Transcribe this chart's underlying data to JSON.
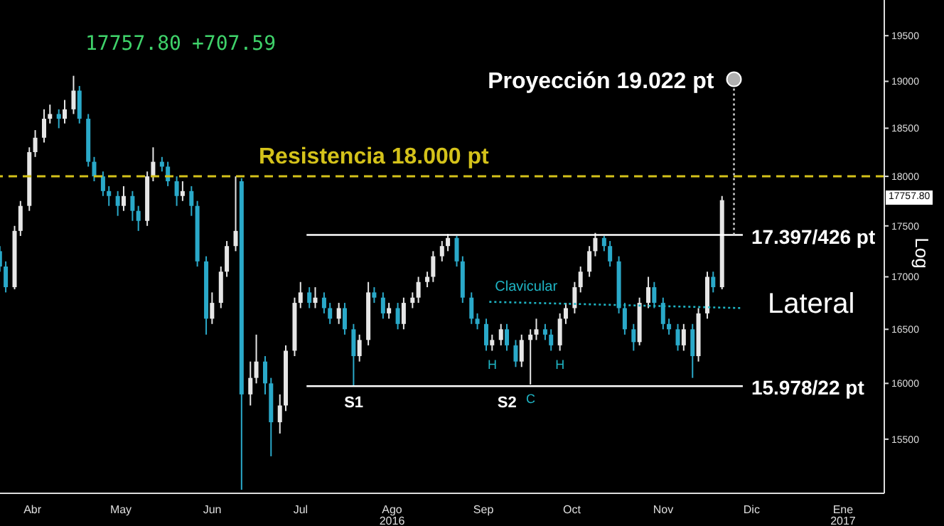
{
  "chart_data": {
    "type": "candlestick",
    "ylabel": "Log",
    "log": true,
    "legend": false,
    "xlim": [
      "2016-04-05",
      "2017-01-30"
    ],
    "xticks": [
      {
        "value": "2016-04-16",
        "label": "Abr"
      },
      {
        "value": "2016-05-16",
        "label": "May"
      },
      {
        "value": "2016-06-16",
        "label": "Jun"
      },
      {
        "value": "2016-07-16",
        "label": "Jul"
      },
      {
        "value": "2016-08-16",
        "label": "Ago\n2016"
      },
      {
        "value": "2016-09-16",
        "label": "Sep"
      },
      {
        "value": "2016-10-16",
        "label": "Oct"
      },
      {
        "value": "2016-11-16",
        "label": "Nov"
      },
      {
        "value": "2016-12-16",
        "label": "Dic"
      },
      {
        "value": "2017-01-16",
        "label": "Ene\n2017"
      }
    ],
    "ylim": [
      15030,
      19900
    ],
    "yticks": [
      15500,
      16000,
      16500,
      17000,
      17500,
      18000,
      18500,
      19000,
      19500
    ],
    "x": [
      "2016-04-05",
      "2016-04-07",
      "2016-04-10",
      "2016-04-12",
      "2016-04-15",
      "2016-04-17",
      "2016-04-20",
      "2016-04-22",
      "2016-04-25",
      "2016-04-27",
      "2016-04-30",
      "2016-05-02",
      "2016-05-05",
      "2016-05-07",
      "2016-05-10",
      "2016-05-12",
      "2016-05-15",
      "2016-05-17",
      "2016-05-20",
      "2016-05-22",
      "2016-05-25",
      "2016-05-27",
      "2016-05-30",
      "2016-06-01",
      "2016-06-04",
      "2016-06-06",
      "2016-06-09",
      "2016-06-11",
      "2016-06-14",
      "2016-06-16",
      "2016-06-19",
      "2016-06-21",
      "2016-06-24",
      "2016-06-26",
      "2016-06-29",
      "2016-07-01",
      "2016-07-04",
      "2016-07-06",
      "2016-07-09",
      "2016-07-11",
      "2016-07-14",
      "2016-07-16",
      "2016-07-19",
      "2016-07-21",
      "2016-07-24",
      "2016-07-26",
      "2016-07-29",
      "2016-07-31",
      "2016-08-03",
      "2016-08-05",
      "2016-08-08",
      "2016-08-10",
      "2016-08-13",
      "2016-08-15",
      "2016-08-18",
      "2016-08-20",
      "2016-08-23",
      "2016-08-25",
      "2016-08-28",
      "2016-08-30",
      "2016-09-02",
      "2016-09-04",
      "2016-09-07",
      "2016-09-09",
      "2016-09-12",
      "2016-09-14",
      "2016-09-17",
      "2016-09-19",
      "2016-09-22",
      "2016-09-24",
      "2016-09-27",
      "2016-09-29",
      "2016-10-02",
      "2016-10-04",
      "2016-10-07",
      "2016-10-09",
      "2016-10-12",
      "2016-10-14",
      "2016-10-17",
      "2016-10-19",
      "2016-10-22",
      "2016-10-24",
      "2016-10-27",
      "2016-10-29",
      "2016-11-01",
      "2016-11-03",
      "2016-11-06",
      "2016-11-08",
      "2016-11-11",
      "2016-11-13",
      "2016-11-16",
      "2016-11-18",
      "2016-11-21",
      "2016-11-23",
      "2016-11-26",
      "2016-11-28",
      "2016-12-01",
      "2016-12-03",
      "2016-12-06"
    ],
    "ohlc": [
      [
        17250,
        17300,
        17050,
        17100
      ],
      [
        17100,
        17150,
        16850,
        16900
      ],
      [
        16900,
        17500,
        16880,
        17450
      ],
      [
        17450,
        17750,
        17400,
        17700
      ],
      [
        17700,
        18300,
        17650,
        18250
      ],
      [
        18250,
        18480,
        18200,
        18400
      ],
      [
        18400,
        18700,
        18350,
        18600
      ],
      [
        18600,
        18750,
        18550,
        18650
      ],
      [
        18650,
        18700,
        18500,
        18600
      ],
      [
        18600,
        18800,
        18550,
        18700
      ],
      [
        18700,
        19060,
        18650,
        18900
      ],
      [
        18900,
        18950,
        18550,
        18600
      ],
      [
        18600,
        18650,
        18100,
        18150
      ],
      [
        18150,
        18200,
        17950,
        18000
      ],
      [
        18000,
        18050,
        17800,
        17850
      ],
      [
        17850,
        17900,
        17700,
        17800
      ],
      [
        17800,
        17850,
        17600,
        17700
      ],
      [
        17700,
        17900,
        17650,
        17800
      ],
      [
        17800,
        17850,
        17550,
        17650
      ],
      [
        17650,
        17700,
        17450,
        17550
      ],
      [
        17550,
        18050,
        17500,
        18000
      ],
      [
        18000,
        18300,
        17950,
        18150
      ],
      [
        18150,
        18200,
        18050,
        18100
      ],
      [
        18100,
        18150,
        17900,
        17950
      ],
      [
        17950,
        18000,
        17700,
        17800
      ],
      [
        17800,
        17950,
        17750,
        17850
      ],
      [
        17850,
        17900,
        17600,
        17700
      ],
      [
        17700,
        17750,
        17100,
        17150
      ],
      [
        17150,
        17200,
        16450,
        16600
      ],
      [
        16600,
        16850,
        16550,
        16750
      ],
      [
        16750,
        17100,
        16700,
        17050
      ],
      [
        17050,
        17350,
        17000,
        17300
      ],
      [
        17300,
        18000,
        17250,
        17450
      ],
      [
        17950,
        17980,
        15060,
        15900
      ],
      [
        15900,
        16200,
        15800,
        16050
      ],
      [
        16050,
        16450,
        16000,
        16200
      ],
      [
        16200,
        16250,
        15900,
        16000
      ],
      [
        16000,
        16050,
        15350,
        15650
      ],
      [
        15650,
        15900,
        15550,
        15800
      ],
      [
        15800,
        16350,
        15750,
        16300
      ],
      [
        16300,
        16800,
        16250,
        16750
      ],
      [
        16750,
        16950,
        16700,
        16850
      ],
      [
        16850,
        16900,
        16700,
        16750
      ],
      [
        16750,
        16900,
        16700,
        16800
      ],
      [
        16800,
        16850,
        16650,
        16700
      ],
      [
        16700,
        16750,
        16550,
        16600
      ],
      [
        16600,
        16750,
        16550,
        16700
      ],
      [
        16700,
        16750,
        16450,
        16500
      ],
      [
        16500,
        16550,
        15978,
        16250
      ],
      [
        16250,
        16450,
        16200,
        16400
      ],
      [
        16400,
        16950,
        16350,
        16850
      ],
      [
        16850,
        16900,
        16750,
        16800
      ],
      [
        16800,
        16850,
        16600,
        16650
      ],
      [
        16650,
        16750,
        16600,
        16700
      ],
      [
        16700,
        16750,
        16500,
        16550
      ],
      [
        16550,
        16800,
        16500,
        16750
      ],
      [
        16750,
        16850,
        16700,
        16800
      ],
      [
        16800,
        17000,
        16750,
        16950
      ],
      [
        16950,
        17050,
        16900,
        17000
      ],
      [
        17000,
        17250,
        16950,
        17200
      ],
      [
        17200,
        17350,
        17150,
        17300
      ],
      [
        17300,
        17420,
        17250,
        17380
      ],
      [
        17380,
        17400,
        17100,
        17150
      ],
      [
        17150,
        17200,
        16750,
        16800
      ],
      [
        16800,
        16850,
        16550,
        16600
      ],
      [
        16600,
        16650,
        16500,
        16550
      ],
      [
        16550,
        16600,
        16300,
        16350
      ],
      [
        16350,
        16450,
        16300,
        16400
      ],
      [
        16400,
        16550,
        16350,
        16500
      ],
      [
        16500,
        16550,
        16300,
        16350
      ],
      [
        16350,
        16400,
        16150,
        16200
      ],
      [
        16200,
        16450,
        16150,
        16400
      ],
      [
        16400,
        16500,
        15990,
        16450
      ],
      [
        16450,
        16600,
        16400,
        16500
      ],
      [
        16500,
        16550,
        16400,
        16450
      ],
      [
        16450,
        16500,
        16300,
        16350
      ],
      [
        16350,
        16650,
        16300,
        16600
      ],
      [
        16600,
        16750,
        16550,
        16700
      ],
      [
        16700,
        16950,
        16650,
        16900
      ],
      [
        16900,
        17100,
        16850,
        17050
      ],
      [
        17050,
        17300,
        17000,
        17250
      ],
      [
        17250,
        17430,
        17200,
        17380
      ],
      [
        17380,
        17400,
        17250,
        17300
      ],
      [
        17300,
        17350,
        17100,
        17150
      ],
      [
        17150,
        17200,
        16650,
        16700
      ],
      [
        16700,
        16750,
        16450,
        16500
      ],
      [
        16500,
        16550,
        16300,
        16380
      ],
      [
        16380,
        16800,
        16350,
        16750
      ],
      [
        16750,
        17000,
        16700,
        16900
      ],
      [
        16900,
        16950,
        16700,
        16750
      ],
      [
        16750,
        16800,
        16500,
        16550
      ],
      [
        16550,
        16600,
        16450,
        16500
      ],
      [
        16500,
        16550,
        16300,
        16350
      ],
      [
        16350,
        16550,
        16300,
        16500
      ],
      [
        16500,
        16550,
        16050,
        16250
      ],
      [
        16250,
        16700,
        16200,
        16650
      ],
      [
        16650,
        17050,
        16600,
        17000
      ],
      [
        17000,
        17050,
        16850,
        16900
      ],
      [
        16900,
        17800,
        16880,
        17757.8
      ]
    ],
    "colors": [
      "#2aa9c9",
      "#2aa9c9",
      "#e6e6e6",
      "#e6e6e6",
      "#e6e6e6",
      "#e6e6e6",
      "#e6e6e6",
      "#e6e6e6",
      "#2aa9c9",
      "#e6e6e6",
      "#e6e6e6",
      "#2aa9c9",
      "#2aa9c9",
      "#2aa9c9",
      "#2aa9c9",
      "#2aa9c9",
      "#2aa9c9",
      "#e6e6e6",
      "#2aa9c9",
      "#2aa9c9",
      "#e6e6e6",
      "#e6e6e6",
      "#2aa9c9",
      "#2aa9c9",
      "#2aa9c9",
      "#e6e6e6",
      "#2aa9c9",
      "#2aa9c9",
      "#2aa9c9",
      "#e6e6e6",
      "#e6e6e6",
      "#e6e6e6",
      "#e6e6e6",
      "#2aa9c9",
      "#e6e6e6",
      "#e6e6e6",
      "#2aa9c9",
      "#2aa9c9",
      "#e6e6e6",
      "#e6e6e6",
      "#e6e6e6",
      "#e6e6e6",
      "#2aa9c9",
      "#e6e6e6",
      "#2aa9c9",
      "#2aa9c9",
      "#e6e6e6",
      "#2aa9c9",
      "#2aa9c9",
      "#e6e6e6",
      "#e6e6e6",
      "#2aa9c9",
      "#2aa9c9",
      "#e6e6e6",
      "#2aa9c9",
      "#e6e6e6",
      "#e6e6e6",
      "#e6e6e6",
      "#e6e6e6",
      "#e6e6e6",
      "#e6e6e6",
      "#e6e6e6",
      "#2aa9c9",
      "#2aa9c9",
      "#2aa9c9",
      "#2aa9c9",
      "#2aa9c9",
      "#e6e6e6",
      "#e6e6e6",
      "#2aa9c9",
      "#2aa9c9",
      "#e6e6e6",
      "#e6e6e6",
      "#e6e6e6",
      "#2aa9c9",
      "#2aa9c9",
      "#e6e6e6",
      "#e6e6e6",
      "#e6e6e6",
      "#e6e6e6",
      "#e6e6e6",
      "#e6e6e6",
      "#2aa9c9",
      "#2aa9c9",
      "#2aa9c9",
      "#2aa9c9",
      "#2aa9c9",
      "#e6e6e6",
      "#e6e6e6",
      "#2aa9c9",
      "#2aa9c9",
      "#2aa9c9",
      "#2aa9c9",
      "#e6e6e6",
      "#2aa9c9",
      "#e6e6e6",
      "#e6e6e6",
      "#2aa9c9",
      "#e6e6e6"
    ],
    "series": [
      {
        "type": "line",
        "color": "#ffffff",
        "line_style": "solid",
        "x": [
          "2016-07-18",
          "2016-12-13"
        ],
        "values": [
          17410,
          17410
        ]
      },
      {
        "type": "line",
        "color": "#ffffff",
        "line_style": "solid",
        "x": [
          "2016-07-18",
          "2016-12-13"
        ],
        "values": [
          15975,
          15975
        ]
      },
      {
        "type": "line",
        "color": "#1fb5c5",
        "line_style": "dotted",
        "x": [
          "2016-09-18",
          "2016-12-13"
        ],
        "values": [
          16760,
          16700
        ]
      },
      {
        "type": "line",
        "color": "#cccccc",
        "line_style": "dotted",
        "x": [
          "2016-12-10",
          "2016-12-10"
        ],
        "values": [
          17410,
          19022
        ]
      },
      {
        "type": "scatter",
        "color": "#b0b0b0",
        "marker": "circle",
        "x": [
          "2016-12-10"
        ],
        "values": [
          19022
        ]
      }
    ],
    "ref_lines": [
      {
        "axis": "y",
        "value": 18000,
        "label": "Resistencia 18.000 pt",
        "color": "#d4c21a",
        "line_style": "dashed"
      }
    ],
    "annotations": [
      "17757.80",
      "+707.59",
      {
        "text": "Proyección 19.022 pt",
        "x": "2016-12-10",
        "y": 19022
      },
      {
        "text": "17.397/426 pt",
        "x": "2016-12-13",
        "y": 17410
      },
      {
        "text": "15.978/22 pt",
        "x": "2016-12-13",
        "y": 15975
      },
      "Lateral",
      {
        "text": "Clavicular",
        "x": "2016-09-18",
        "y": 16760
      },
      {
        "text": "S1",
        "x": "2016-08-03",
        "y": 15978
      },
      {
        "text": "S2",
        "x": "2016-09-24",
        "y": 15975
      },
      {
        "text": "H",
        "x": "2016-09-19",
        "y": 16300
      },
      {
        "text": "C",
        "x": "2016-10-02",
        "y": 15990
      },
      {
        "text": "H",
        "x": "2016-10-12",
        "y": 16300
      },
      "17757.80"
    ]
  }
}
